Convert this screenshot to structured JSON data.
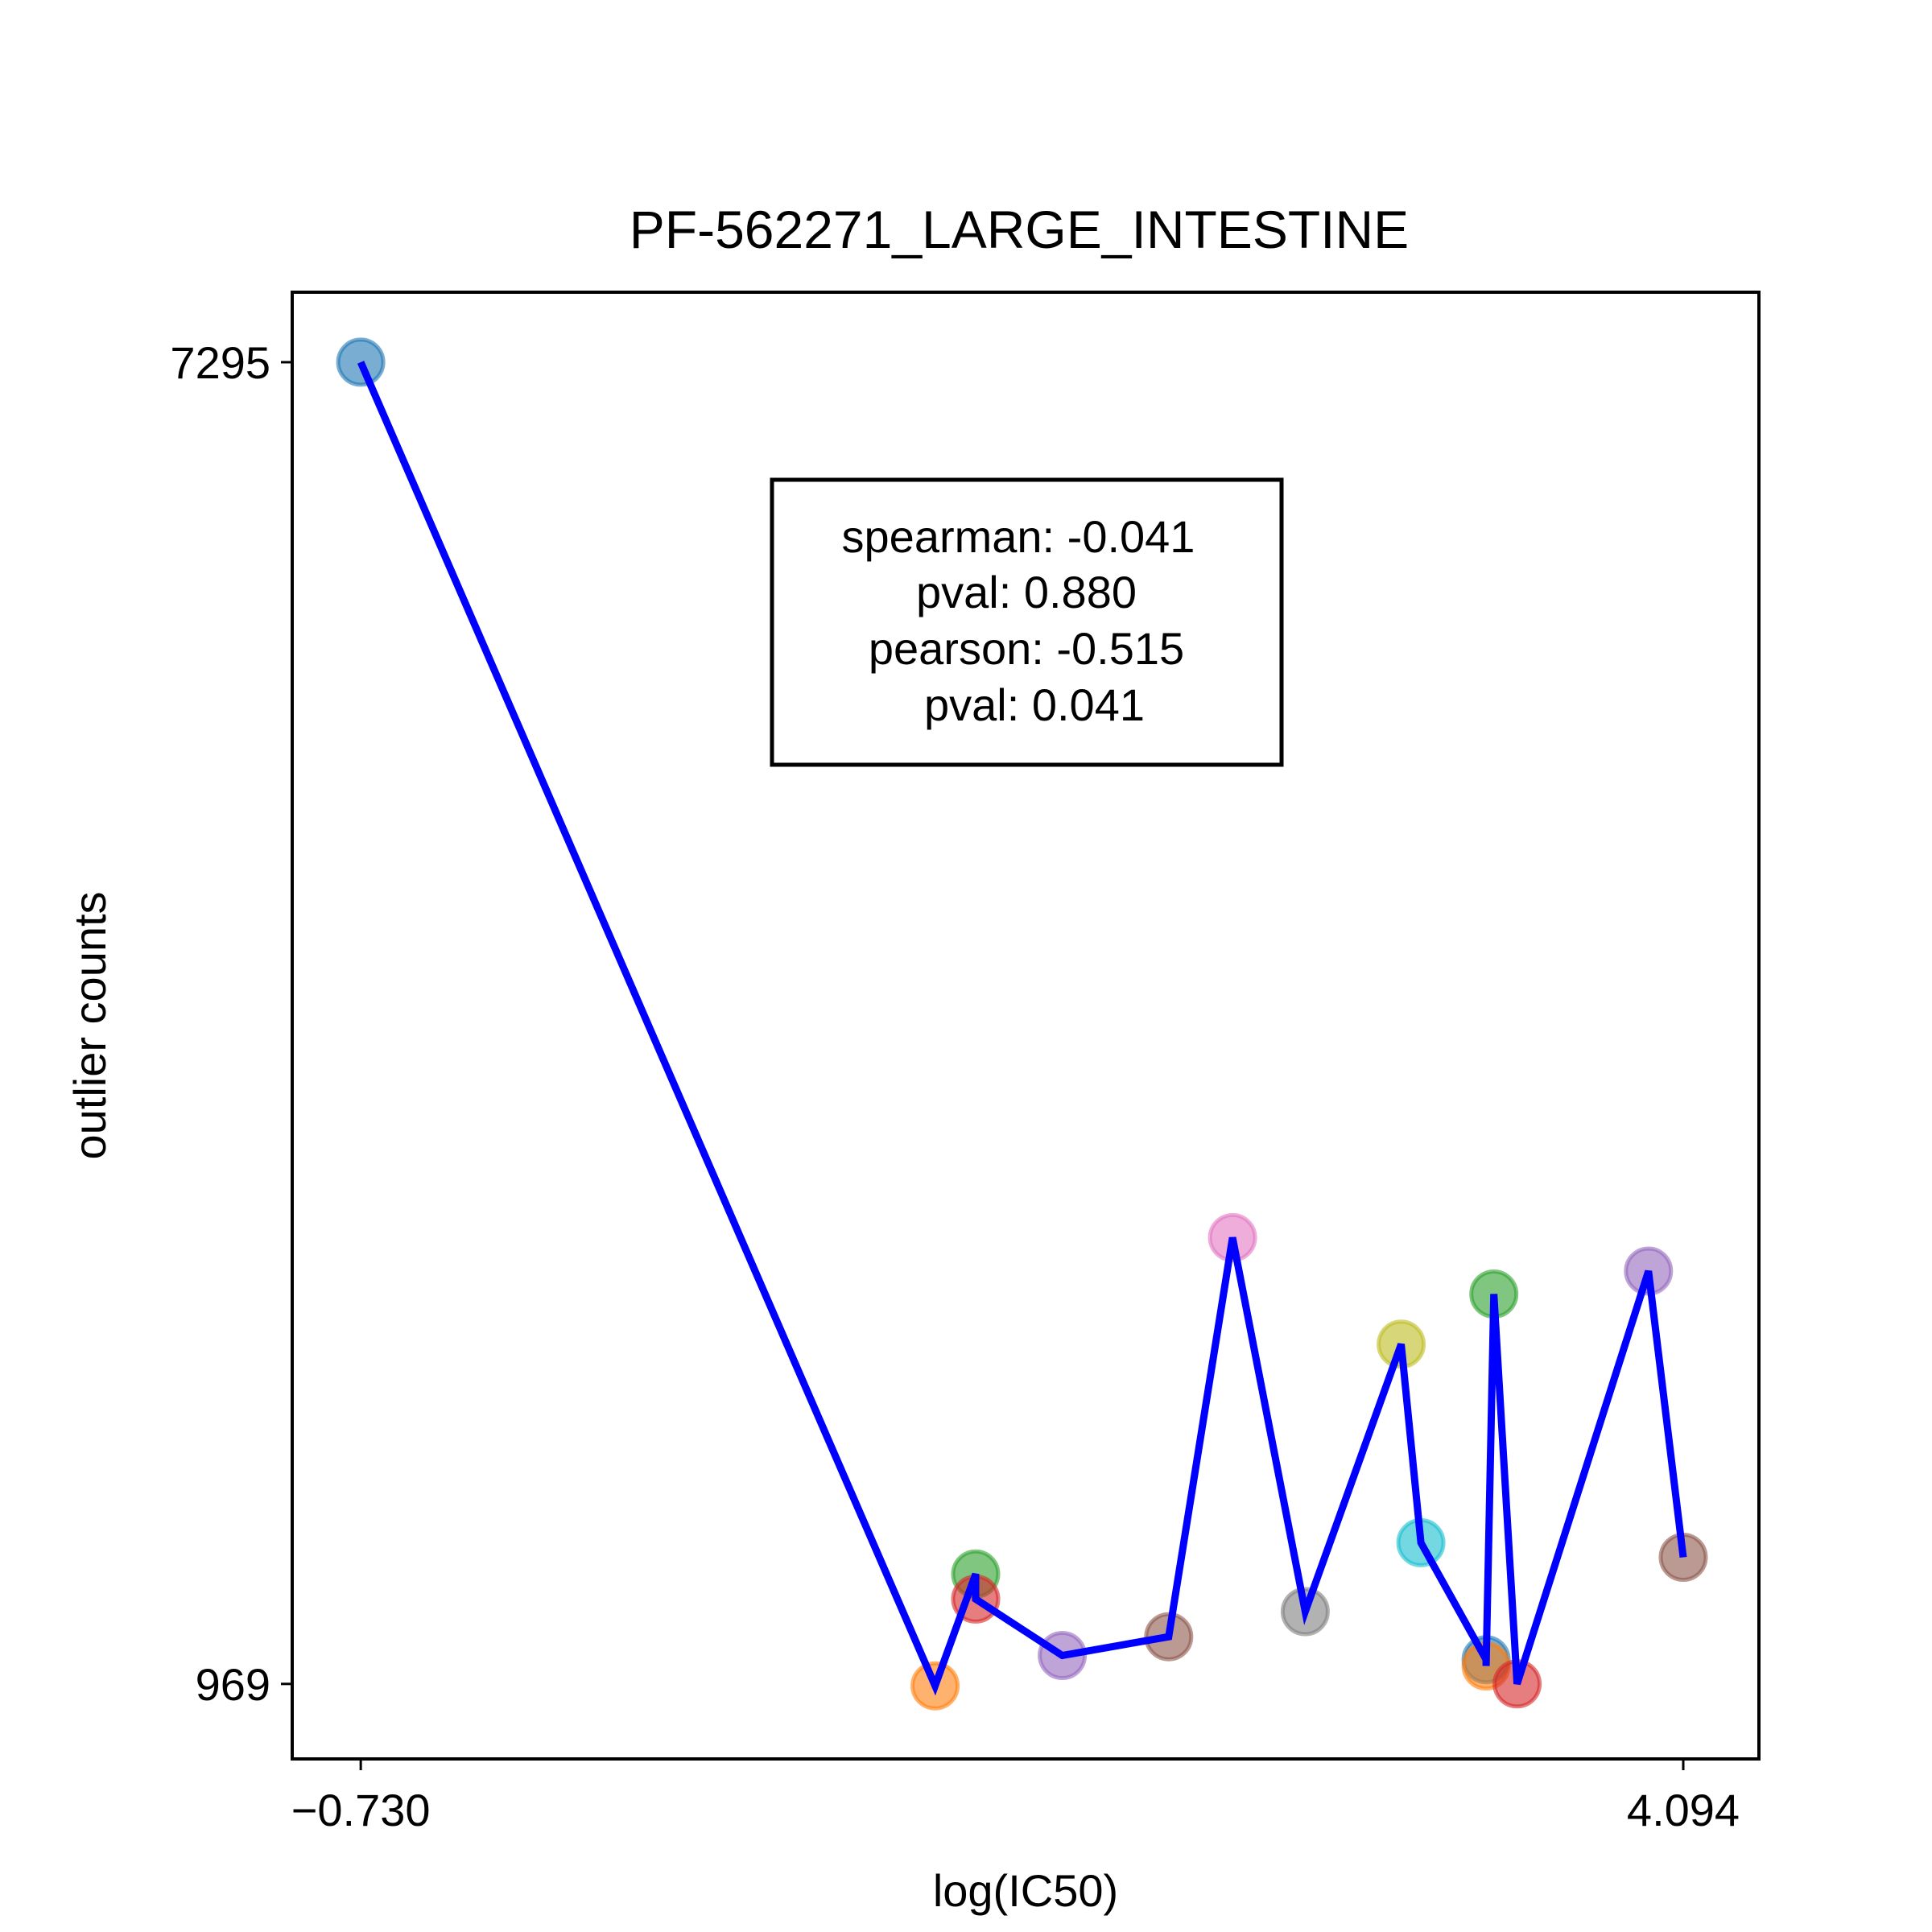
{
  "chart_data": {
    "type": "line",
    "title": "PF-562271_LARGE_INTESTINE",
    "xlabel": "log(IC50)",
    "ylabel": "outlier counts",
    "xlim": [
      -0.98,
      4.37
    ],
    "ylim": [
      610,
      7630
    ],
    "xticks": [
      -0.73,
      4.094
    ],
    "xtick_labels": [
      "−0.730",
      "4.094"
    ],
    "yticks": [
      969,
      7295
    ],
    "ytick_labels": [
      "969",
      "7295"
    ],
    "grid": false,
    "line_color": "#0000ff",
    "points": [
      {
        "x": -0.73,
        "y": 7295,
        "color": "#1f77b4"
      },
      {
        "x": 1.365,
        "y": 960,
        "color": "#ff7f0e"
      },
      {
        "x": 1.513,
        "y": 1495,
        "color": "#2ca02c"
      },
      {
        "x": 1.513,
        "y": 1375,
        "color": "#d62728"
      },
      {
        "x": 1.829,
        "y": 1105,
        "color": "#9467bd"
      },
      {
        "x": 2.217,
        "y": 1195,
        "color": "#8c564b"
      },
      {
        "x": 2.45,
        "y": 3105,
        "color": "#e377c2"
      },
      {
        "x": 2.715,
        "y": 1315,
        "color": "#7f7f7f"
      },
      {
        "x": 3.065,
        "y": 2595,
        "color": "#bcbd22"
      },
      {
        "x": 3.137,
        "y": 1645,
        "color": "#17becf"
      },
      {
        "x": 3.375,
        "y": 1085,
        "color": "#1f77b4"
      },
      {
        "x": 3.375,
        "y": 1055,
        "color": "#ff7f0e"
      },
      {
        "x": 3.403,
        "y": 2835,
        "color": "#2ca02c"
      },
      {
        "x": 3.488,
        "y": 969,
        "color": "#d62728"
      },
      {
        "x": 3.967,
        "y": 2945,
        "color": "#9467bd"
      },
      {
        "x": 4.094,
        "y": 1575,
        "color": "#8c564b"
      }
    ],
    "annotation": {
      "lines": [
        "spearman: -0.041",
        "pval: 0.880",
        "pearson: -0.515",
        "pval: 0.041"
      ]
    }
  }
}
